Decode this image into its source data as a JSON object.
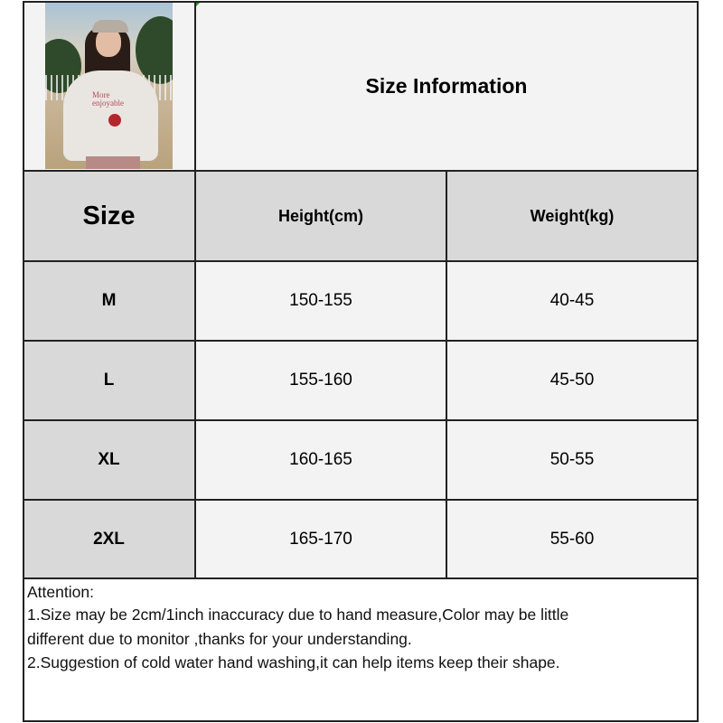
{
  "title": "Size Information",
  "photo": {
    "shirt_text": [
      "More",
      "enjoyable"
    ]
  },
  "table": {
    "headers": [
      "Size",
      "Height(cm)",
      "Weight(kg)"
    ],
    "rows": [
      [
        "M",
        "150-155",
        "40-45"
      ],
      [
        "L",
        "155-160",
        "45-50"
      ],
      [
        "XL",
        "160-165",
        "50-55"
      ],
      [
        "2XL",
        "165-170",
        "55-60"
      ]
    ]
  },
  "notes": {
    "heading": "Attention:",
    "lines": [
      "1.Size may be 2cm/1inch inaccuracy due to hand measure,Color may be little",
      "different due to monitor ,thanks for your understanding.",
      "2.Suggestion of cold water hand washing,it can help items keep their shape."
    ]
  },
  "colors": {
    "header_bg": "#d9d9d9",
    "cell_bg": "#f3f3f3",
    "border": "#222222"
  }
}
